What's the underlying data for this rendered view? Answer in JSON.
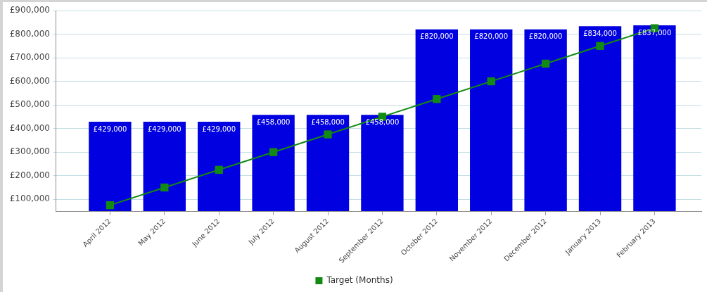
{
  "chart_data": {
    "type": "bar",
    "categories": [
      "April 2012",
      "May 2012",
      "June 2012",
      "July 2012",
      "August 2012",
      "September 2012",
      "October 2012",
      "November 2012",
      "December 2012",
      "January 2013",
      "February 2013"
    ],
    "series": [
      {
        "color": "#0000e0",
        "values": [
          429000,
          429000,
          429000,
          458000,
          458000,
          458000,
          820000,
          820000,
          820000,
          834000,
          837000
        ],
        "value_labels": [
          "£429,000",
          "£429,000",
          "£429,000",
          "£458,000",
          "£458,000",
          "£458,000",
          "£820,000",
          "£820,000",
          "£820,000",
          "£834,000",
          "£837,000"
        ]
      },
      {
        "type": "line",
        "name": "Target (Months)",
        "color": "#138a13",
        "marker": "square",
        "values": [
          75000,
          150000,
          225000,
          300000,
          375000,
          450000,
          525000,
          600000,
          675000,
          750000,
          825000
        ]
      }
    ],
    "ylim": [
      50000,
      900000
    ],
    "yticks": [
      {
        "value": 100000,
        "label": "£100,000"
      },
      {
        "value": 200000,
        "label": "£200,000"
      },
      {
        "value": 300000,
        "label": "£300,000"
      },
      {
        "value": 400000,
        "label": "£400,000"
      },
      {
        "value": 500000,
        "label": "£500,000"
      },
      {
        "value": 600000,
        "label": "£600,000"
      },
      {
        "value": 700000,
        "label": "£700,000"
      },
      {
        "value": 800000,
        "label": "£800,000"
      },
      {
        "value": 900000,
        "label": "£900,000"
      }
    ],
    "grid": "y",
    "legend": "bottom"
  }
}
